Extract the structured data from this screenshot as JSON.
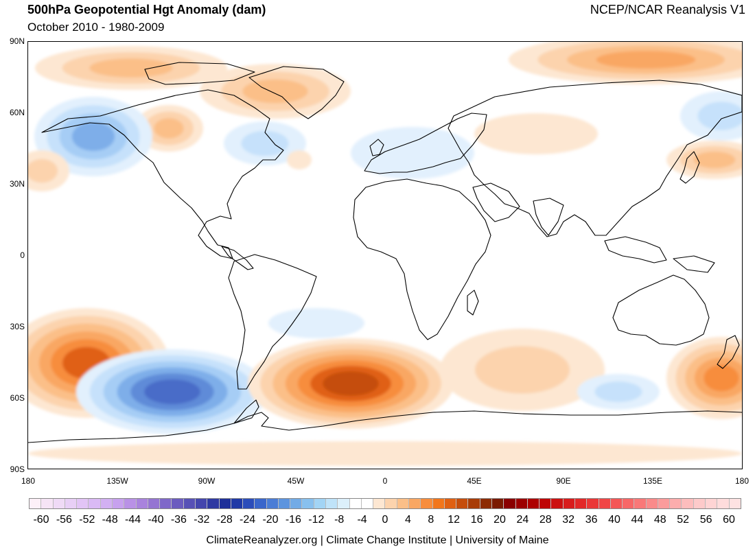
{
  "header": {
    "title": "500hPa Geopotential Hgt Anomaly (dam)",
    "subtitle": "October 2010 - 1980-2009",
    "source": "NCEP/NCAR Reanalysis V1"
  },
  "axes": {
    "lat_labels": [
      "90N",
      "60N",
      "30N",
      "0",
      "30S",
      "60S",
      "90S"
    ],
    "lon_labels": [
      "180",
      "135W",
      "90W",
      "45W",
      "0",
      "45E",
      "90E",
      "135E",
      "180"
    ]
  },
  "colorbar": {
    "tick_labels": [
      "-60",
      "-56",
      "-52",
      "-48",
      "-44",
      "-40",
      "-36",
      "-32",
      "-28",
      "-24",
      "-20",
      "-16",
      "-12",
      "-8",
      "-4",
      "0",
      "4",
      "8",
      "12",
      "16",
      "20",
      "24",
      "28",
      "32",
      "36",
      "40",
      "44",
      "48",
      "52",
      "56",
      "60"
    ],
    "colors": [
      "#fdf0f8",
      "#f6e4f6",
      "#efdaf6",
      "#e8cff6",
      "#e2c4f6",
      "#dabaf5",
      "#d2b0f2",
      "#c7a1ee",
      "#b991e6",
      "#a983dd",
      "#9575d2",
      "#7f68c9",
      "#6b5cbf",
      "#5751b6",
      "#4446ad",
      "#2f3aa2",
      "#1f3099",
      "#203aa6",
      "#2b4dba",
      "#3a66cb",
      "#4b7dd6",
      "#5d94de",
      "#72abe6",
      "#88c0ee",
      "#a2d4f5",
      "#bfe3f9",
      "#dcf0fb",
      "#ffffff",
      "#ffffff",
      "#fde7d2",
      "#fcd3ad",
      "#fbbf88",
      "#f9a763",
      "#f78d3d",
      "#f2761b",
      "#e06012",
      "#c54d0c",
      "#a83c07",
      "#8d2c03",
      "#7a1a00",
      "#8a0000",
      "#9c0000",
      "#ad0000",
      "#be0505",
      "#cc1010",
      "#d81c1c",
      "#e22828",
      "#ea3737",
      "#f04646",
      "#f45656",
      "#f76767",
      "#f97878",
      "#fa8a8a",
      "#fb9c9c",
      "#fcadad",
      "#fdbdbd",
      "#fdcaca",
      "#fed4d4",
      "#fedcdc",
      "#fee2e2"
    ]
  },
  "anomaly_fields": {
    "positive_levels": [
      "#fde7d2",
      "#fcd3ad",
      "#fbbf88",
      "#f9a763",
      "#f78d3d",
      "#e06012",
      "#c54d0c"
    ],
    "negative_levels": [
      "#e2f0fd",
      "#c6e1fb",
      "#a6cdf5",
      "#7eaee9",
      "#5e8bd8",
      "#4a6cc8"
    ]
  },
  "footer": {
    "text": "ClimateReanalyzer.org | Climate Change Institute | University of Maine"
  }
}
